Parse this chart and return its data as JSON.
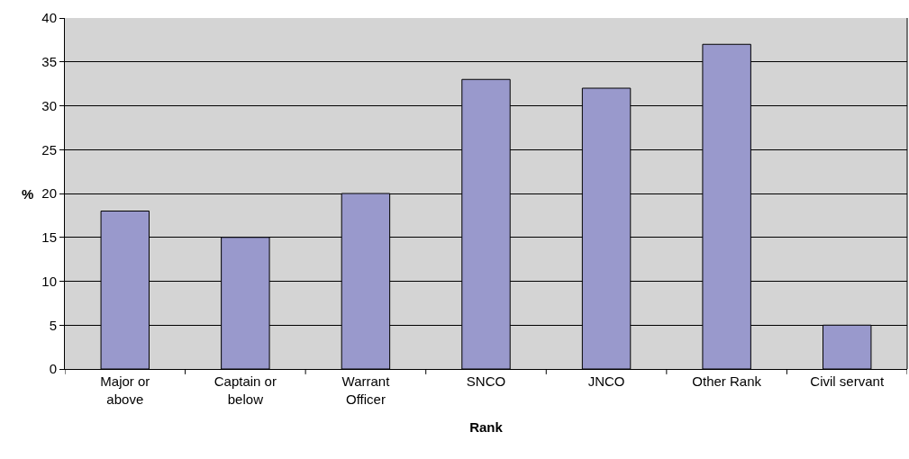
{
  "chart_data": {
    "type": "bar",
    "xlabel": "Rank",
    "ylabel": "%",
    "categories": [
      "Major or above",
      "Captain or below",
      "Warrant Officer",
      "SNCO",
      "JNCO",
      "Other Rank",
      "Civil servant"
    ],
    "values": [
      18,
      15,
      20,
      33,
      32,
      37,
      5
    ],
    "color": "#9999cc",
    "ylim": [
      0,
      40
    ],
    "yticks": [
      0,
      5,
      10,
      15,
      20,
      25,
      30,
      35,
      40
    ],
    "grid": "y"
  }
}
